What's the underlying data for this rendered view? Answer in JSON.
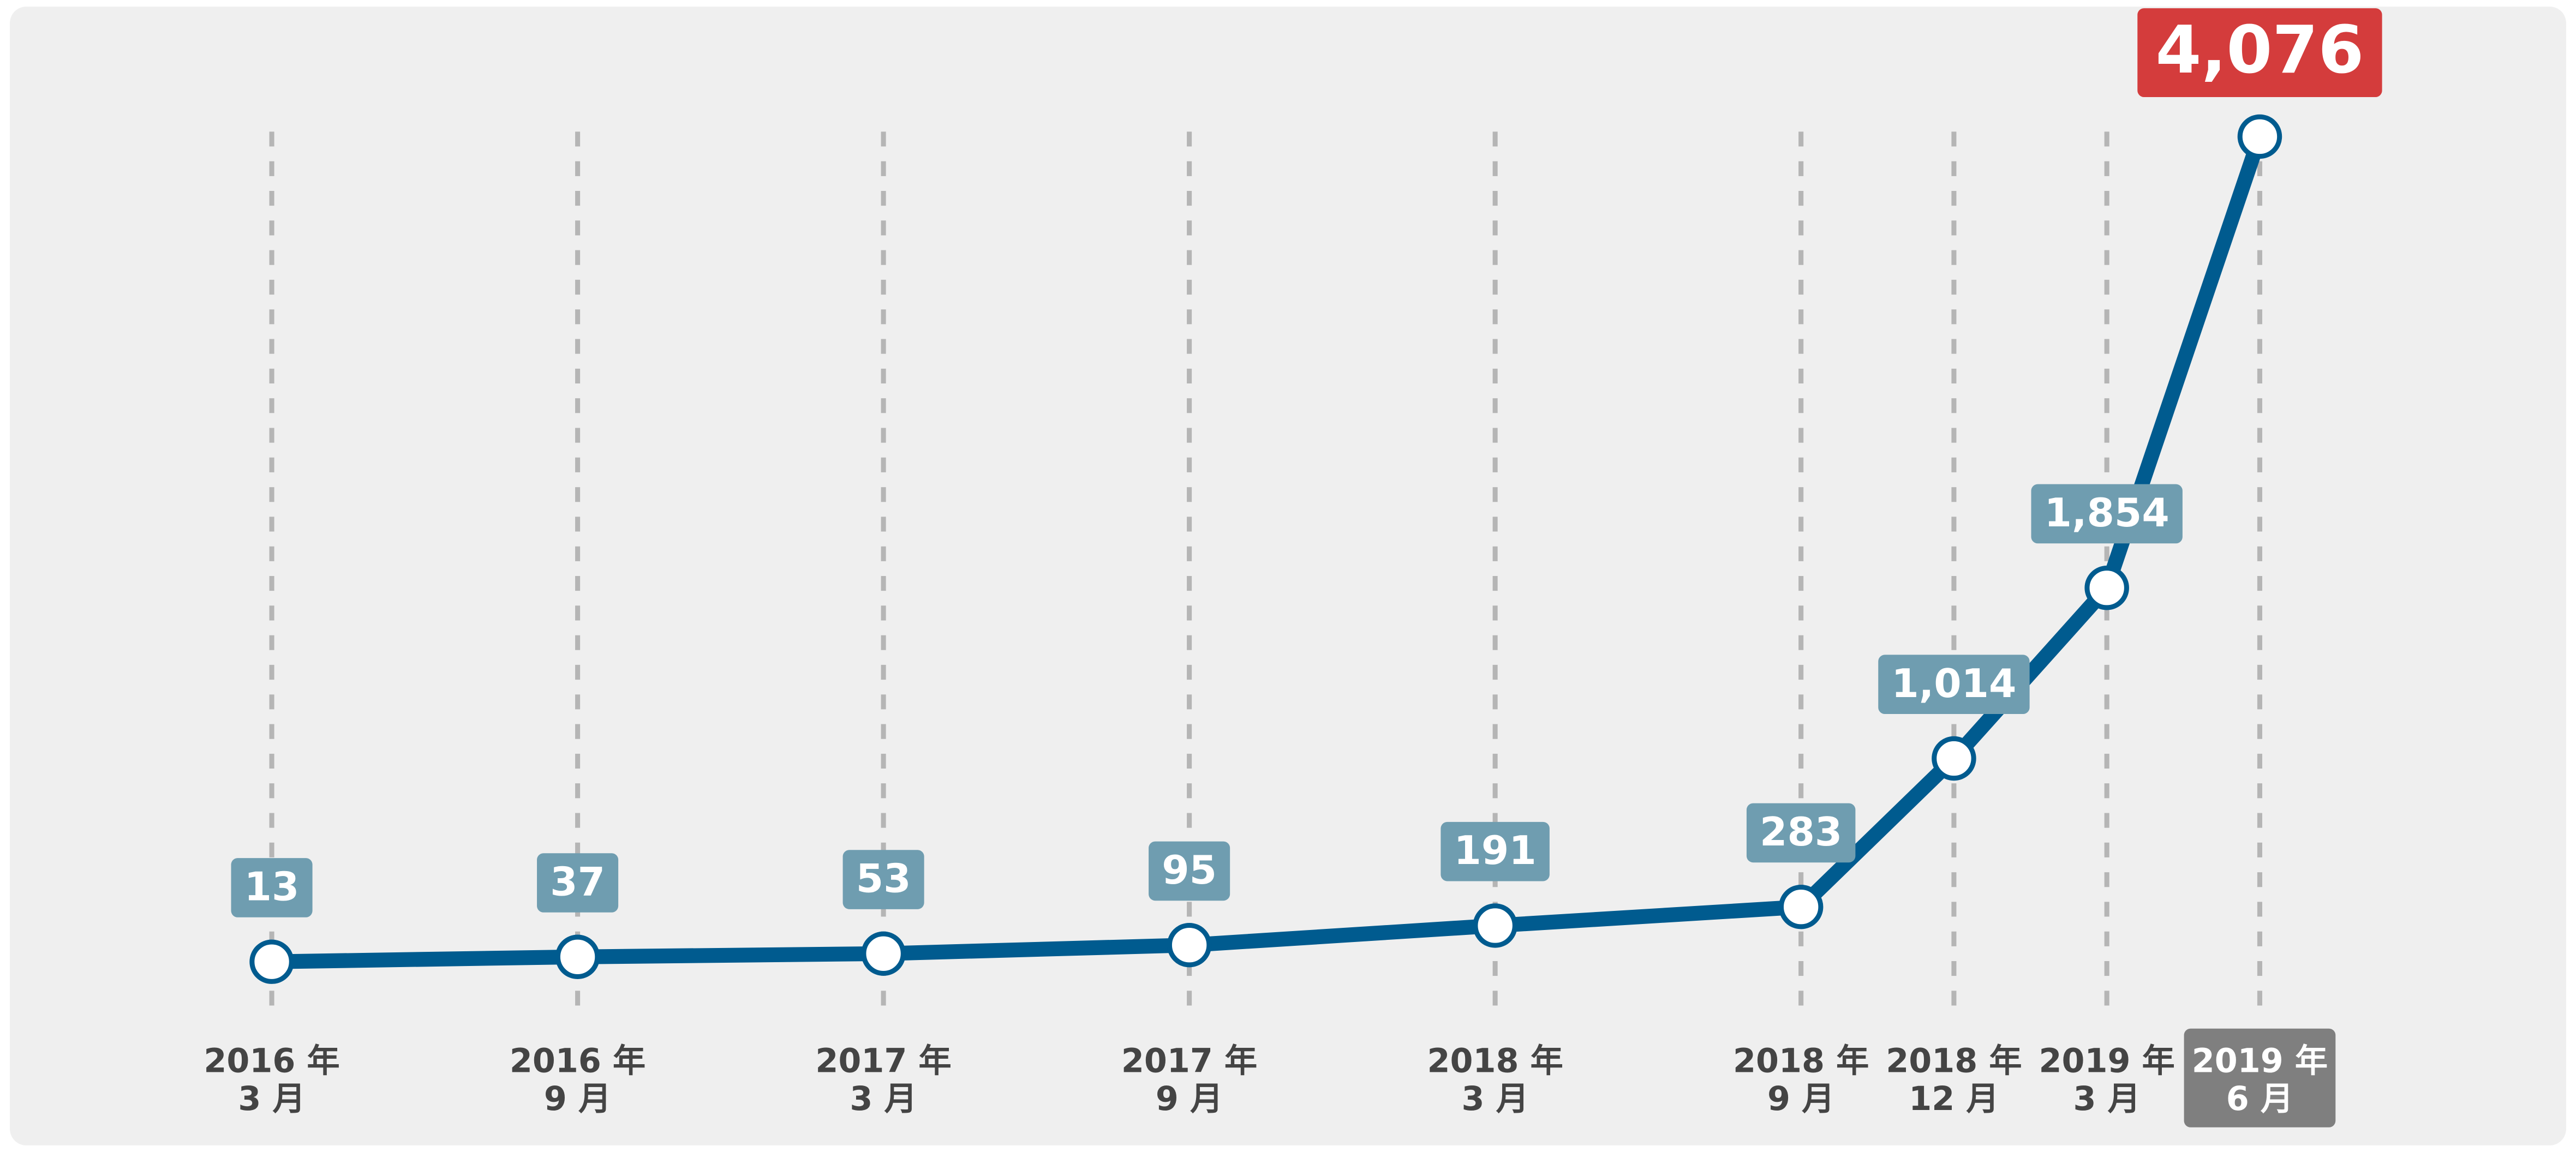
{
  "chart_data": {
    "type": "line",
    "x": [
      "2016-03",
      "2016-09",
      "2017-03",
      "2017-09",
      "2018-03",
      "2018-09",
      "2018-12",
      "2019-03",
      "2019-06"
    ],
    "x_labels": [
      [
        "2016 年",
        "3 月"
      ],
      [
        "2016 年",
        "9 月"
      ],
      [
        "2017 年",
        "3 月"
      ],
      [
        "2017 年",
        "9 月"
      ],
      [
        "2018 年",
        "3 月"
      ],
      [
        "2018 年",
        "9 月"
      ],
      [
        "2018 年",
        "12 月"
      ],
      [
        "2019 年",
        "3 月"
      ],
      [
        "2019 年",
        "6 月"
      ]
    ],
    "series": [
      {
        "color": "#005b8f",
        "values": [
          13,
          37,
          53,
          95,
          191,
          283,
          1014,
          1854,
          4076
        ],
        "value_labels": [
          "13",
          "37",
          "53",
          "95",
          "191",
          "283",
          "1,014",
          "1,854",
          "4,076"
        ]
      }
    ],
    "ylim": [
      0,
      4076
    ],
    "label_color": "#6f9db0",
    "highlight_color": "#d43c3c",
    "highlight_axis_color": "#7f7f7f",
    "grid": true
  }
}
